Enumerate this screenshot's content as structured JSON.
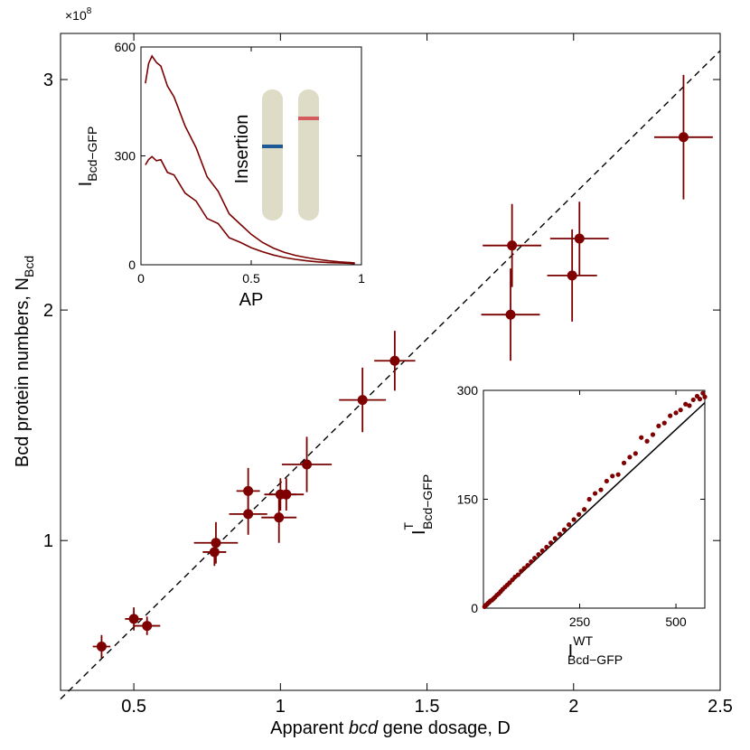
{
  "colors": {
    "series": "#7a0000",
    "pointFill": "#7f0000",
    "axis": "#000000",
    "chromosome": "#dedbc6",
    "insertBlue": "#1f5a96",
    "insertRed": "#d55c5c"
  },
  "chart_data": [
    {
      "id": "main",
      "type": "scatter",
      "xlabel_prefix": "Apparent ",
      "xlabel_italic": "bcd",
      "xlabel_suffix": " gene dosage, D",
      "ylabel_main": "Bcd protein numbers, N",
      "ylabel_sub": "Bcd",
      "y_multiplier_base": "×10",
      "y_multiplier_exp": "8",
      "xlim": [
        0.25,
        2.5
      ],
      "ylim": [
        0.35,
        3.2
      ],
      "xticks": [
        0.5,
        1,
        1.5,
        2,
        2.5
      ],
      "xtick_labels": [
        "0.5",
        "1",
        "1.5",
        "2",
        "2.5"
      ],
      "yticks": [
        1,
        2,
        3
      ],
      "ytick_labels": [
        "1",
        "2",
        "3"
      ],
      "reference_line": {
        "style": "dashed",
        "from": [
          0.25,
          0.3125
        ],
        "to": [
          2.5,
          3.125
        ]
      },
      "points": [
        {
          "x": 0.39,
          "y": 0.54,
          "xerr": 0.03,
          "yerr": 0.05
        },
        {
          "x": 0.5,
          "y": 0.66,
          "xerr": 0.03,
          "yerr": 0.05
        },
        {
          "x": 0.545,
          "y": 0.63,
          "xerr": 0.045,
          "yerr": 0.04
        },
        {
          "x": 0.775,
          "y": 0.95,
          "xerr": 0.04,
          "yerr": 0.06
        },
        {
          "x": 0.78,
          "y": 0.99,
          "xerr": 0.075,
          "yerr": 0.09
        },
        {
          "x": 0.89,
          "y": 1.115,
          "xerr": 0.065,
          "yerr": 0.09
        },
        {
          "x": 0.89,
          "y": 1.215,
          "xerr": 0.04,
          "yerr": 0.1
        },
        {
          "x": 0.995,
          "y": 1.1,
          "xerr": 0.06,
          "yerr": 0.11
        },
        {
          "x": 1.0,
          "y": 1.2,
          "xerr": 0.055,
          "yerr": 0.07
        },
        {
          "x": 1.02,
          "y": 1.2,
          "xerr": 0.06,
          "yerr": 0.07
        },
        {
          "x": 1.09,
          "y": 1.33,
          "xerr": 0.085,
          "yerr": 0.12
        },
        {
          "x": 1.28,
          "y": 1.61,
          "xerr": 0.08,
          "yerr": 0.14
        },
        {
          "x": 1.39,
          "y": 1.78,
          "xerr": 0.07,
          "yerr": 0.13
        },
        {
          "x": 1.785,
          "y": 1.98,
          "xerr": 0.1,
          "yerr": 0.2
        },
        {
          "x": 1.79,
          "y": 2.28,
          "xerr": 0.1,
          "yerr": 0.18
        },
        {
          "x": 1.995,
          "y": 2.15,
          "xerr": 0.085,
          "yerr": 0.2
        },
        {
          "x": 2.02,
          "y": 2.31,
          "xerr": 0.1,
          "yerr": 0.16
        },
        {
          "x": 2.375,
          "y": 2.75,
          "xerr": 0.1,
          "yerr": 0.27
        }
      ]
    },
    {
      "id": "inset-top",
      "type": "line",
      "xlabel": "AP",
      "ylabel_main": "I",
      "ylabel_sub": "Bcd−GFP",
      "annotation": "Insertion",
      "xlim": [
        0,
        1
      ],
      "ylim": [
        0,
        600
      ],
      "xticks": [
        0,
        0.5,
        1
      ],
      "xtick_labels": [
        "0",
        "0.5",
        "1"
      ],
      "yticks": [
        0,
        300,
        600
      ],
      "ytick_labels": [
        "0",
        "300",
        "600"
      ],
      "series": [
        {
          "name": "upper",
          "x": [
            0.02,
            0.035,
            0.05,
            0.07,
            0.09,
            0.12,
            0.15,
            0.2,
            0.25,
            0.3,
            0.35,
            0.4,
            0.45,
            0.5,
            0.55,
            0.6,
            0.65,
            0.7,
            0.75,
            0.8,
            0.85,
            0.9,
            0.95,
            0.97
          ],
          "y": [
            500,
            555,
            575,
            565,
            540,
            500,
            455,
            390,
            315,
            250,
            195,
            148,
            112,
            84,
            62,
            46,
            34,
            26,
            20,
            15,
            11,
            8,
            6,
            5
          ]
        },
        {
          "name": "lower",
          "x": [
            0.02,
            0.035,
            0.05,
            0.07,
            0.09,
            0.12,
            0.15,
            0.2,
            0.25,
            0.3,
            0.35,
            0.4,
            0.45,
            0.5,
            0.55,
            0.6,
            0.65,
            0.7,
            0.75,
            0.8,
            0.85,
            0.9,
            0.95,
            0.97
          ],
          "y": [
            275,
            290,
            298,
            294,
            282,
            262,
            240,
            205,
            168,
            135,
            106,
            82,
            62,
            47,
            36,
            27,
            20,
            15,
            11,
            8,
            6,
            5,
            4,
            3
          ]
        }
      ],
      "chromosome_labels": []
    },
    {
      "id": "inset-bottom",
      "type": "scatter",
      "xlabel_main": "I",
      "xlabel_sup": "WT",
      "xlabel_sub": "Bcd−GFP",
      "ylabel_main": "I",
      "ylabel_sup": "T",
      "ylabel_sub": "Bcd−GFP",
      "xlim": [
        0,
        575
      ],
      "ylim": [
        0,
        300
      ],
      "xticks": [
        250,
        500
      ],
      "xtick_labels": [
        "250",
        "500"
      ],
      "yticks": [
        0,
        150,
        300
      ],
      "ytick_labels": [
        "0",
        "150",
        "300"
      ],
      "fit_line": {
        "from": [
          0,
          0
        ],
        "to": [
          575,
          283
        ]
      },
      "x": [
        3,
        6,
        9,
        12,
        15,
        18,
        22,
        26,
        30,
        35,
        40,
        45,
        50,
        56,
        62,
        68,
        75,
        82,
        90,
        98,
        106,
        115,
        124,
        133,
        143,
        153,
        164,
        175,
        186,
        198,
        210,
        222,
        235,
        248,
        262,
        275,
        290,
        305,
        320,
        335,
        350,
        365,
        380,
        395,
        410,
        425,
        440,
        455,
        470,
        485,
        500,
        512,
        525,
        535,
        545,
        555,
        562,
        570,
        575
      ],
      "y": [
        2,
        4,
        5,
        7,
        8,
        10,
        11,
        13,
        15,
        18,
        20,
        23,
        26,
        29,
        32,
        35,
        39,
        43,
        46,
        51,
        55,
        59,
        64,
        69,
        74,
        79,
        84,
        90,
        96,
        102,
        108,
        115,
        122,
        129,
        136,
        150,
        158,
        163,
        175,
        182,
        184,
        200,
        208,
        213,
        235,
        230,
        239,
        251,
        255,
        265,
        269,
        273,
        281,
        279,
        287,
        292,
        288,
        296,
        291
      ]
    }
  ]
}
